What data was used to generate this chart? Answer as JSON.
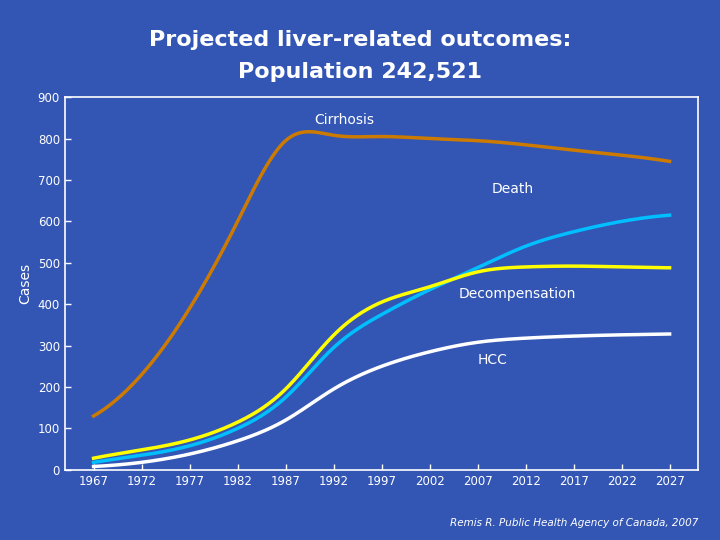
{
  "title_line1": "Projected liver-related outcomes:",
  "title_line2": "Population 242,521",
  "ylabel": "Cases",
  "background_color": "#3356B5",
  "plot_bg_color": "#3356B5",
  "title_color": "#FFFFFF",
  "axis_color": "#FFFFFF",
  "tick_color": "#FFFFFF",
  "ylabel_color": "#FFFFFF",
  "credit": "Remis R. Public Health Agency of Canada, 2007",
  "years": [
    1967,
    1972,
    1977,
    1982,
    1987,
    1992,
    1997,
    2002,
    2007,
    2012,
    2017,
    2022,
    2027
  ],
  "cirrhosis": [
    130,
    230,
    390,
    600,
    795,
    808,
    805,
    800,
    795,
    785,
    772,
    760,
    745
  ],
  "death": [
    18,
    35,
    58,
    100,
    175,
    295,
    375,
    435,
    488,
    540,
    575,
    600,
    615
  ],
  "decompensation": [
    28,
    48,
    72,
    115,
    195,
    325,
    405,
    442,
    478,
    490,
    492,
    490,
    488
  ],
  "hcc": [
    8,
    18,
    38,
    70,
    120,
    195,
    250,
    285,
    308,
    318,
    323,
    326,
    328
  ],
  "cirrhosis_color": "#CC7A00",
  "death_color": "#00BFFF",
  "decompensation_color": "#FFFF00",
  "hcc_color": "#FFFFFF",
  "ylim": [
    0,
    900
  ],
  "yticks": [
    0,
    100,
    200,
    300,
    400,
    500,
    600,
    700,
    800,
    900
  ],
  "line_width": 2.5
}
